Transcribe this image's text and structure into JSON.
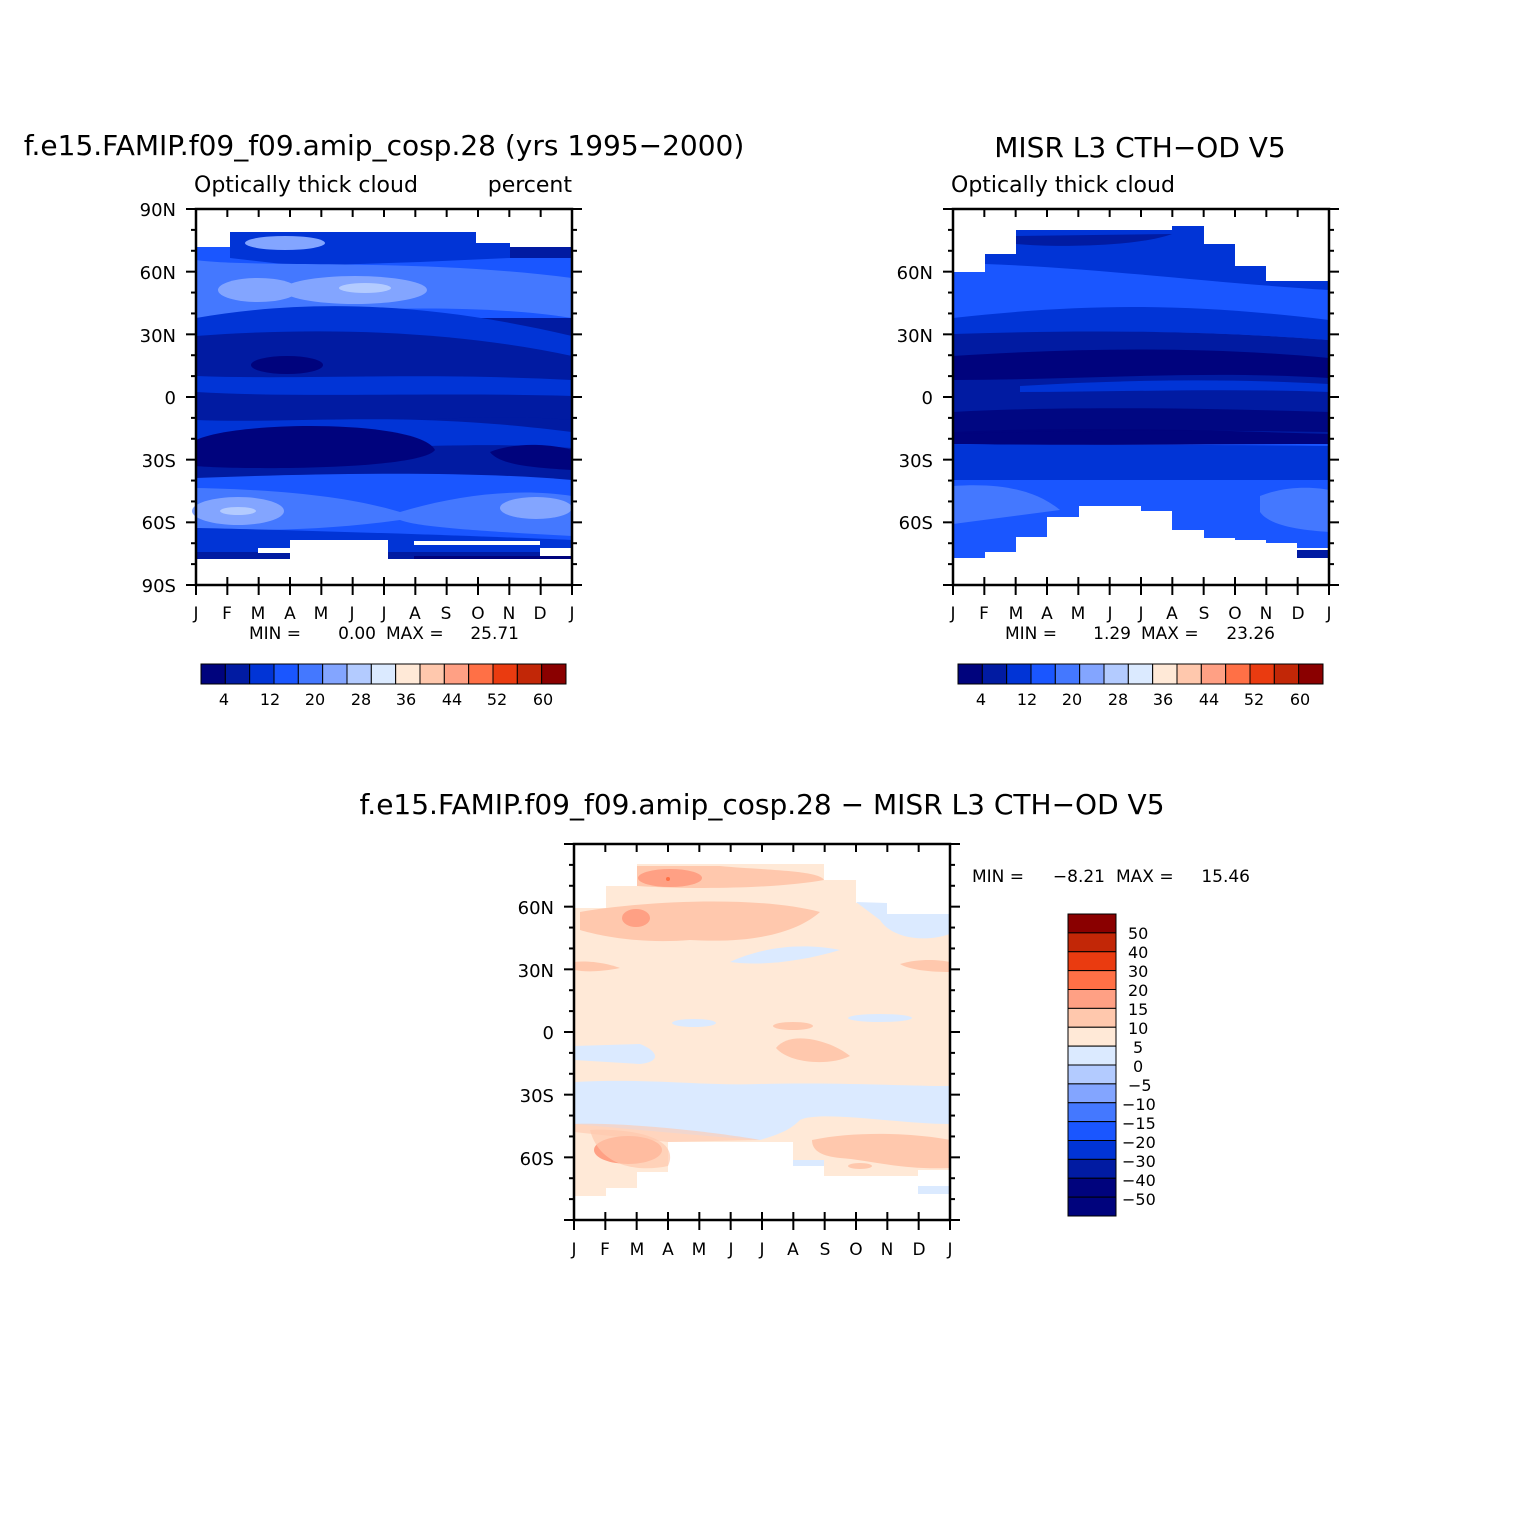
{
  "colors": {
    "seq_levels": [
      "#00037d",
      "#011ba2",
      "#0134d6",
      "#1a56ff",
      "#4478ff",
      "#83a5ff",
      "#b3cbff",
      "#dbeaff",
      "#ffe9d7",
      "#ffc8ad",
      "#ffa084",
      "#ff7046",
      "#ea3b10",
      "#c22707",
      "#8a0000"
    ],
    "diff_levels": [
      "#00037d",
      "#011ba2",
      "#0134d6",
      "#1a56ff",
      "#4478ff",
      "#83a5ff",
      "#b3cbff",
      "#dbeaff",
      "#ffe9d7",
      "#ffc8ad",
      "#ffa084",
      "#ff7046",
      "#ea3b10",
      "#c22707",
      "#8a0000"
    ]
  },
  "chart_data": [
    {
      "type": "heatmap",
      "title": "f.e15.FAMIP.f09_f09.amip_cosp.28 (yrs 1995−2000)",
      "left_label": "Optically thick cloud",
      "right_label": "percent",
      "x_categories": [
        "J",
        "F",
        "M",
        "A",
        "M",
        "J",
        "J",
        "A",
        "S",
        "O",
        "N",
        "D",
        "J"
      ],
      "y_ticks": [
        "90N",
        "60N",
        "30N",
        "0",
        "30S",
        "60S",
        "90S"
      ],
      "ylim": [
        -90,
        90
      ],
      "stats": {
        "min_label": "MIN =",
        "min": "0.00",
        "max_label": "MAX =",
        "max": "25.71"
      },
      "colorbar_labels": [
        "4",
        "12",
        "20",
        "28",
        "36",
        "44",
        "52",
        "60"
      ],
      "lat_bands": [
        {
          "lat": 72,
          "values": [
            12,
            14,
            16,
            18,
            17,
            14,
            12,
            10,
            10,
            9,
            8,
            10,
            12
          ]
        },
        {
          "lat": 60,
          "values": [
            14,
            16,
            20,
            22,
            21,
            18,
            16,
            14,
            13,
            12,
            13,
            14,
            14
          ]
        },
        {
          "lat": 48,
          "values": [
            16,
            20,
            24,
            20,
            22,
            24,
            22,
            18,
            15,
            14,
            14,
            15,
            16
          ]
        },
        {
          "lat": 36,
          "values": [
            14,
            15,
            16,
            15,
            14,
            14,
            13,
            12,
            11,
            10,
            10,
            12,
            14
          ]
        },
        {
          "lat": 24,
          "values": [
            8,
            8,
            8,
            7,
            8,
            8,
            8,
            8,
            8,
            8,
            8,
            8,
            8
          ]
        },
        {
          "lat": 12,
          "values": [
            7,
            6,
            4,
            3,
            5,
            7,
            8,
            8,
            7,
            7,
            7,
            7,
            7
          ]
        },
        {
          "lat": 0,
          "values": [
            8,
            8,
            8,
            8,
            8,
            9,
            10,
            10,
            9,
            8,
            8,
            8,
            8
          ]
        },
        {
          "lat": -12,
          "values": [
            7,
            7,
            7,
            8,
            8,
            8,
            8,
            7,
            6,
            6,
            6,
            6,
            7
          ]
        },
        {
          "lat": -24,
          "values": [
            5,
            5,
            4,
            3,
            3,
            3,
            3,
            3,
            4,
            4,
            4,
            4,
            5
          ]
        },
        {
          "lat": -36,
          "values": [
            7,
            7,
            7,
            6,
            6,
            6,
            6,
            7,
            6,
            5,
            5,
            5,
            7
          ]
        },
        {
          "lat": -48,
          "values": [
            16,
            17,
            16,
            15,
            14,
            13,
            13,
            13,
            14,
            16,
            17,
            18,
            16
          ]
        },
        {
          "lat": -60,
          "values": [
            22,
            25,
            20,
            16,
            14,
            12,
            11,
            11,
            13,
            16,
            18,
            20,
            22
          ]
        },
        {
          "lat": -68,
          "values": [
            14,
            14,
            12,
            11,
            10,
            9,
            9,
            9,
            9,
            11,
            12,
            13,
            14
          ]
        }
      ],
      "missing": [
        {
          "lat_range": [
            -90,
            -72
          ],
          "months": "all"
        },
        {
          "lat_range": [
            -72,
            -66
          ],
          "months": [
            4,
            5,
            6,
            7,
            8,
            9,
            10
          ]
        },
        {
          "lat_range": [
            76,
            90
          ],
          "months": "all"
        }
      ]
    },
    {
      "type": "heatmap",
      "title": "MISR L3 CTH−OD V5",
      "left_label": "Optically thick cloud",
      "x_categories": [
        "J",
        "F",
        "M",
        "A",
        "M",
        "J",
        "J",
        "A",
        "S",
        "O",
        "N",
        "D",
        "J"
      ],
      "y_ticks": [
        "60N",
        "30N",
        "0",
        "30S",
        "60S"
      ],
      "ylim": [
        -90,
        90
      ],
      "stats": {
        "min_label": "MIN =",
        "min": "1.29",
        "max_label": "MAX =",
        "max": "23.26"
      },
      "colorbar_labels": [
        "4",
        "12",
        "20",
        "28",
        "36",
        "44",
        "52",
        "60"
      ],
      "lat_bands": [
        {
          "lat": 70,
          "values": [
            10,
            11,
            11,
            10,
            10,
            10,
            10,
            10,
            10,
            10,
            10,
            10,
            10
          ]
        },
        {
          "lat": 55,
          "values": [
            15,
            15,
            16,
            16,
            16,
            16,
            15,
            15,
            15,
            15,
            15,
            15,
            15
          ]
        },
        {
          "lat": 42,
          "values": [
            16,
            16,
            16,
            16,
            16,
            16,
            16,
            16,
            16,
            16,
            16,
            16,
            16
          ]
        },
        {
          "lat": 30,
          "values": [
            11,
            11,
            11,
            11,
            10,
            10,
            10,
            11,
            11,
            11,
            11,
            11,
            11
          ]
        },
        {
          "lat": 18,
          "values": [
            3,
            3,
            3,
            3,
            3,
            4,
            4,
            4,
            4,
            4,
            3,
            3,
            3
          ]
        },
        {
          "lat": 6,
          "values": [
            8,
            8,
            8,
            8,
            8,
            8,
            8,
            8,
            8,
            8,
            8,
            8,
            8
          ]
        },
        {
          "lat": -6,
          "values": [
            8,
            8,
            8,
            8,
            8,
            8,
            8,
            8,
            8,
            8,
            8,
            8,
            8
          ]
        },
        {
          "lat": -18,
          "values": [
            4,
            3,
            3,
            3,
            3,
            3,
            3,
            3,
            3,
            3,
            4,
            4,
            4
          ]
        },
        {
          "lat": -30,
          "values": [
            9,
            9,
            9,
            9,
            9,
            9,
            9,
            9,
            9,
            9,
            9,
            9,
            9
          ]
        },
        {
          "lat": -42,
          "values": [
            14,
            14,
            13,
            13,
            13,
            13,
            13,
            13,
            13,
            13,
            14,
            14,
            14
          ]
        },
        {
          "lat": -52,
          "values": [
            18,
            17,
            16,
            16,
            15,
            14,
            15,
            16,
            16,
            18,
            19,
            20,
            18
          ]
        },
        {
          "lat": -62,
          "values": [
            14,
            14,
            14,
            14,
            14,
            14,
            14,
            14,
            14,
            14,
            14,
            14,
            14
          ]
        }
      ]
    },
    {
      "type": "heatmap",
      "title": "f.e15.FAMIP.f09_f09.amip_cosp.28 − MISR L3 CTH−OD V5",
      "x_categories": [
        "J",
        "F",
        "M",
        "A",
        "M",
        "J",
        "J",
        "A",
        "S",
        "O",
        "N",
        "D",
        "J"
      ],
      "y_ticks": [
        "60N",
        "30N",
        "0",
        "30S",
        "60S"
      ],
      "ylim": [
        -90,
        90
      ],
      "stats": {
        "min_label": "MIN =",
        "min": "−8.21",
        "max_label": "MAX =",
        "max": "15.46"
      },
      "colorbar_labels": [
        "50",
        "40",
        "30",
        "20",
        "15",
        "10",
        "5",
        "0",
        "−5",
        "−10",
        "−15",
        "−20",
        "−30",
        "−40",
        "−50"
      ]
    }
  ]
}
